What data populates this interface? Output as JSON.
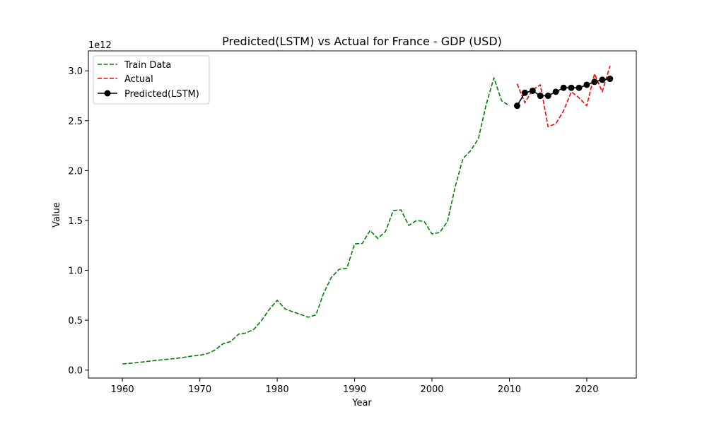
{
  "chart_data": {
    "type": "line",
    "title": "Predicted(LSTM) vs Actual for France - GDP (USD)",
    "xlabel": "Year",
    "ylabel": "Value",
    "y_offset_label": "1e12",
    "xlim": [
      1955.6,
      2026.4
    ],
    "ylim": [
      -0.08,
      3.2
    ],
    "x_ticks": [
      1960,
      1970,
      1980,
      1990,
      2000,
      2010,
      2020
    ],
    "x_tick_labels": [
      "1960",
      "1970",
      "1980",
      "1990",
      "2000",
      "2010",
      "2020"
    ],
    "y_ticks": [
      0.0,
      0.5,
      1.0,
      1.5,
      2.0,
      2.5,
      3.0
    ],
    "y_tick_labels": [
      "0.0",
      "0.5",
      "1.0",
      "1.5",
      "2.0",
      "2.5",
      "3.0"
    ],
    "grid": false,
    "legend_position": "top-left",
    "series": [
      {
        "name": "Train Data",
        "color": "#008000",
        "style": "dashed",
        "x": [
          1960,
          1961,
          1962,
          1963,
          1964,
          1965,
          1966,
          1967,
          1968,
          1969,
          1970,
          1971,
          1972,
          1973,
          1974,
          1975,
          1976,
          1977,
          1978,
          1979,
          1980,
          1981,
          1982,
          1983,
          1984,
          1985,
          1986,
          1987,
          1988,
          1989,
          1990,
          1991,
          1992,
          1993,
          1994,
          1995,
          1996,
          1997,
          1998,
          1999,
          2000,
          2001,
          2002,
          2003,
          2004,
          2005,
          2006,
          2007,
          2008,
          2009,
          2010
        ],
        "values": [
          0.062,
          0.068,
          0.076,
          0.085,
          0.094,
          0.102,
          0.11,
          0.118,
          0.129,
          0.141,
          0.148,
          0.166,
          0.203,
          0.264,
          0.287,
          0.36,
          0.373,
          0.41,
          0.5,
          0.61,
          0.7,
          0.615,
          0.584,
          0.558,
          0.53,
          0.553,
          0.77,
          0.93,
          1.01,
          1.02,
          1.265,
          1.27,
          1.4,
          1.32,
          1.39,
          1.6,
          1.605,
          1.45,
          1.5,
          1.49,
          1.365,
          1.38,
          1.49,
          1.84,
          2.12,
          2.2,
          2.32,
          2.66,
          2.93,
          2.7,
          2.65
        ]
      },
      {
        "name": "Actual",
        "color": "#ff0000",
        "style": "dashed",
        "x": [
          2011,
          2012,
          2013,
          2014,
          2015,
          2016,
          2017,
          2018,
          2019,
          2020,
          2021,
          2022,
          2023
        ],
        "values": [
          2.87,
          2.68,
          2.81,
          2.86,
          2.44,
          2.47,
          2.6,
          2.79,
          2.73,
          2.65,
          2.97,
          2.79,
          3.05
        ]
      },
      {
        "name": "Predicted(LSTM)",
        "color": "#000000",
        "style": "solid-markers",
        "x": [
          2011,
          2012,
          2013,
          2014,
          2015,
          2016,
          2017,
          2018,
          2019,
          2020,
          2021,
          2022,
          2023
        ],
        "values": [
          2.65,
          2.78,
          2.8,
          2.75,
          2.75,
          2.79,
          2.83,
          2.83,
          2.83,
          2.86,
          2.89,
          2.91,
          2.92
        ]
      }
    ]
  }
}
